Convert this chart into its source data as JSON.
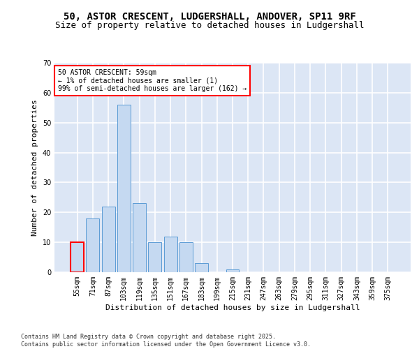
{
  "title_line1": "50, ASTOR CRESCENT, LUDGERSHALL, ANDOVER, SP11 9RF",
  "title_line2": "Size of property relative to detached houses in Ludgershall",
  "xlabel": "Distribution of detached houses by size in Ludgershall",
  "ylabel": "Number of detached properties",
  "categories": [
    "55sqm",
    "71sqm",
    "87sqm",
    "103sqm",
    "119sqm",
    "135sqm",
    "151sqm",
    "167sqm",
    "183sqm",
    "199sqm",
    "215sqm",
    "231sqm",
    "247sqm",
    "263sqm",
    "279sqm",
    "295sqm",
    "311sqm",
    "327sqm",
    "343sqm",
    "359sqm",
    "375sqm"
  ],
  "values": [
    10,
    18,
    22,
    56,
    23,
    10,
    12,
    10,
    3,
    0,
    1,
    0,
    0,
    0,
    0,
    0,
    0,
    0,
    0,
    0,
    0
  ],
  "bar_color": "#c5d9f1",
  "bar_edge_color": "#5b9bd5",
  "highlight_bar_index": 0,
  "highlight_bar_edge_color": "#ff0000",
  "annotation_box_text": "50 ASTOR CRESCENT: 59sqm\n← 1% of detached houses are smaller (1)\n99% of semi-detached houses are larger (162) →",
  "annotation_fontsize": 7,
  "ylim": [
    0,
    70
  ],
  "yticks": [
    0,
    10,
    20,
    30,
    40,
    50,
    60,
    70
  ],
  "background_color": "#dce6f5",
  "grid_color": "#ffffff",
  "footer_text": "Contains HM Land Registry data © Crown copyright and database right 2025.\nContains public sector information licensed under the Open Government Licence v3.0.",
  "title_fontsize": 10,
  "subtitle_fontsize": 9,
  "axis_label_fontsize": 8,
  "tick_fontsize": 7
}
